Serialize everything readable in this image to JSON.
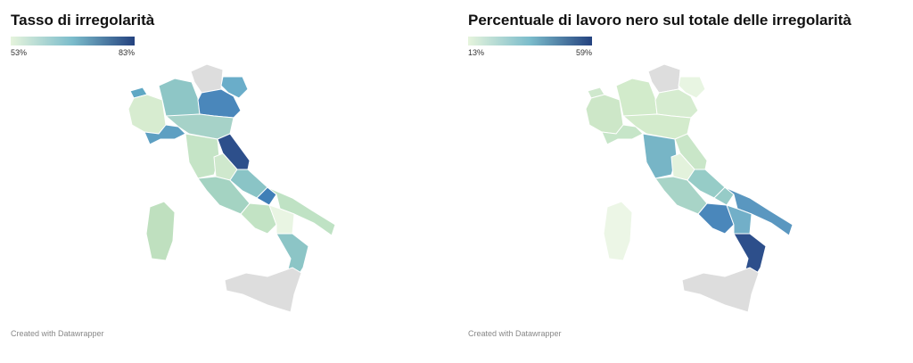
{
  "maps": [
    {
      "title": "Tasso di irregolarità",
      "legend": {
        "min_label": "53%",
        "max_label": "83%",
        "colors": [
          "#e6f4dc",
          "#7bbccb",
          "#24427f"
        ]
      },
      "footer": "Created with Datawrapper"
    },
    {
      "title": "Percentuale di lavoro nero sul totale delle irregolarità",
      "legend": {
        "min_label": "13%",
        "max_label": "59%",
        "colors": [
          "#e6f4dc",
          "#7bbccb",
          "#24427f"
        ]
      },
      "footer": "Created with Datawrapper"
    }
  ]
}
